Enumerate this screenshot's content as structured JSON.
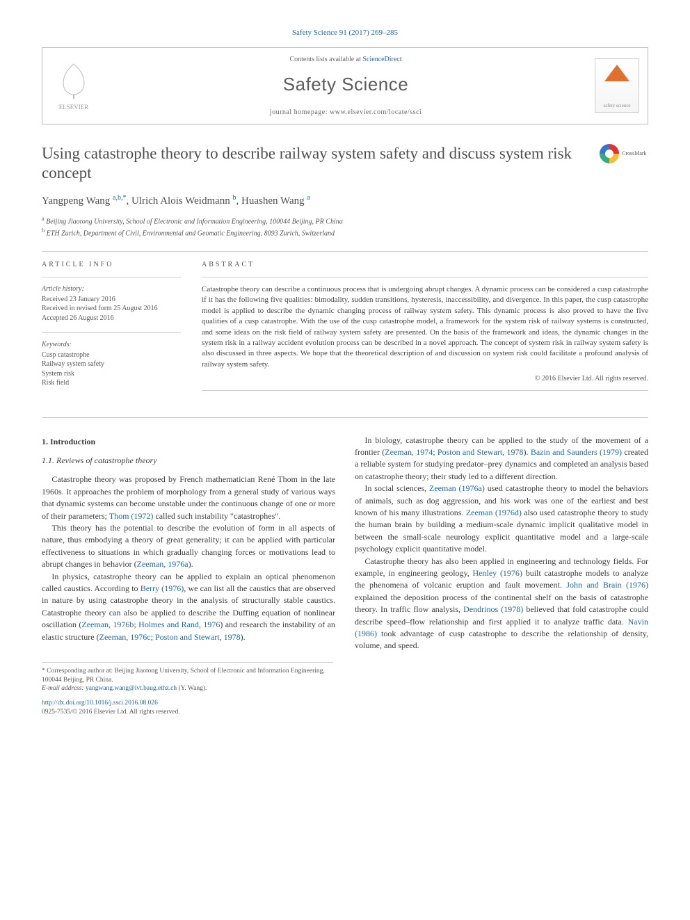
{
  "citation": "Safety Science 91 (2017) 269–285",
  "header": {
    "publisher_logo_text": "ELSEVIER",
    "contents_line_prefix": "Contents lists available at ",
    "contents_line_link": "ScienceDirect",
    "journal_name": "Safety Science",
    "homepage_prefix": "journal homepage: ",
    "homepage_url": "www.elsevier.com/locate/ssci",
    "journal_logo_label": "safety science"
  },
  "title": "Using catastrophe theory to describe railway system safety and discuss system risk concept",
  "crossmark_label": "CrossMark",
  "authors_html": "Yangpeng Wang <sup>a,b,*</sup>, Ulrich Alois Weidmann <sup>b</sup>, Huashen Wang <sup>a</sup>",
  "affiliations": [
    "a Beijing Jiaotong University, School of Electronic and Information Engineering, 100044 Beijing, PR China",
    "b ETH Zurich, Department of Civil, Environmental and Geomatic Engineering, 8093 Zurich, Switzerland"
  ],
  "info": {
    "heading": "ARTICLE INFO",
    "history_label": "Article history:",
    "history": [
      "Received 23 January 2016",
      "Received in revised form 25 August 2016",
      "Accepted 26 August 2016"
    ],
    "keywords_label": "Keywords:",
    "keywords": [
      "Cusp catastrophe",
      "Railway system safety",
      "System risk",
      "Risk field"
    ]
  },
  "abstract": {
    "heading": "ABSTRACT",
    "text": "Catastrophe theory can describe a continuous process that is undergoing abrupt changes. A dynamic process can be considered a cusp catastrophe if it has the following five qualities: bimodality, sudden transitions, hysteresis, inaccessibility, and divergence. In this paper, the cusp catastrophe model is applied to describe the dynamic changing process of railway system safety. This dynamic process is also proved to have the five qualities of a cusp catastrophe. With the use of the cusp catastrophe model, a framework for the system risk of railway systems is constructed, and some ideas on the risk field of railway system safety are presented. On the basis of the framework and ideas, the dynamic changes in the system risk in a railway accident evolution process can be described in a novel approach. The concept of system risk in railway system safety is also discussed in three aspects. We hope that the theoretical description of and discussion on system risk could facilitate a profound analysis of railway system safety.",
    "copyright": "© 2016 Elsevier Ltd. All rights reserved."
  },
  "body": {
    "s1": "1. Introduction",
    "s1_1": "1.1. Reviews of catastrophe theory",
    "p1": "Catastrophe theory was proposed by French mathematician René Thom in the late 1960s. It approaches the problem of morphology from a general study of various ways that dynamic systems can become unstable under the continuous change of one or more of their parameters; ",
    "p1_cite": "Thom (1972)",
    "p1_tail": " called such instability \"catastrophes\".",
    "p2_a": "This theory has the potential to describe the evolution of form in all aspects of nature, thus embodying a theory of great generality; it can be applied with particular effectiveness to situations in which gradually changing forces or motivations lead to abrupt changes in behavior (",
    "p2_cite": "Zeeman, 1976a",
    "p2_b": ").",
    "p3_a": "In physics, catastrophe theory can be applied to explain an optical phenomenon called caustics. According to ",
    "p3_cite1": "Berry (1976)",
    "p3_b": ", we can list all the caustics that are observed in nature by using catastrophe theory in the analysis of structurally stable caustics. Catastrophe theory can also be applied to describe the Duffing equation of nonlinear oscillation (",
    "p3_cite2": "Zeeman, 1976b; Holmes and Rand, 1976",
    "p3_c": ") and research the instability of an elastic structure (",
    "p3_cite3": "Zeeman, 1976c; Poston and Stewart, 1978",
    "p3_d": ").",
    "p4_a": "In biology, catastrophe theory can be applied to the study of the movement of a frontier (",
    "p4_cite1": "Zeeman, 1974; Poston and Stewart, 1978",
    "p4_b": "). ",
    "p4_cite2": "Bazin and Saunders (1979)",
    "p4_c": " created a reliable system for studying predator–prey dynamics and completed an analysis based on catastrophe theory; their study led to a different direction.",
    "p5_a": "In social sciences, ",
    "p5_cite1": "Zeeman (1976a)",
    "p5_b": " used catastrophe theory to model the behaviors of animals, such as dog aggression, and his work was one of the earliest and best known of his many illustrations. ",
    "p5_cite2": "Zeeman (1976d)",
    "p5_c": " also used catastrophe theory to study the human brain by building a medium-scale dynamic implicit qualitative model in between the small-scale neurology explicit quantitative model and a large-scale psychology explicit quantitative model.",
    "p6_a": "Catastrophe theory has also been applied in engineering and technology fields. For example, in engineering geology, ",
    "p6_cite1": "Henley (1976)",
    "p6_b": " built catastrophe models to analyze the phenomena of volcanic eruption and fault movement. ",
    "p6_cite2": "John and Brain (1976)",
    "p6_c": " explained the deposition process of the continental shelf on the basis of catastrophe theory. In traffic flow analysis, ",
    "p6_cite3": "Dendrinos (1978)",
    "p6_d": " believed that fold catastrophe could describe speed–flow relationship and first applied it to analyze traffic data. ",
    "p6_cite4": "Navin (1986)",
    "p6_e": " took advantage of cusp catastrophe to describe the relationship of density, volume, and speed."
  },
  "footnotes": {
    "corr": "* Corresponding author at: Beijing Jiaotong University, School of Electronic and Information Engineering, 100044 Beijing, PR China.",
    "email_label": "E-mail address:",
    "email": "yangwang.wang@ivt.baug.ethz.ch",
    "email_suffix": " (Y. Wang).",
    "doi": "http://dx.doi.org/10.1016/j.ssci.2016.08.026",
    "issn_line": "0925-7535/© 2016 Elsevier Ltd. All rights reserved."
  },
  "colors": {
    "link": "#2266aa",
    "text": "#3b3b3b",
    "rule": "#cccccc"
  }
}
